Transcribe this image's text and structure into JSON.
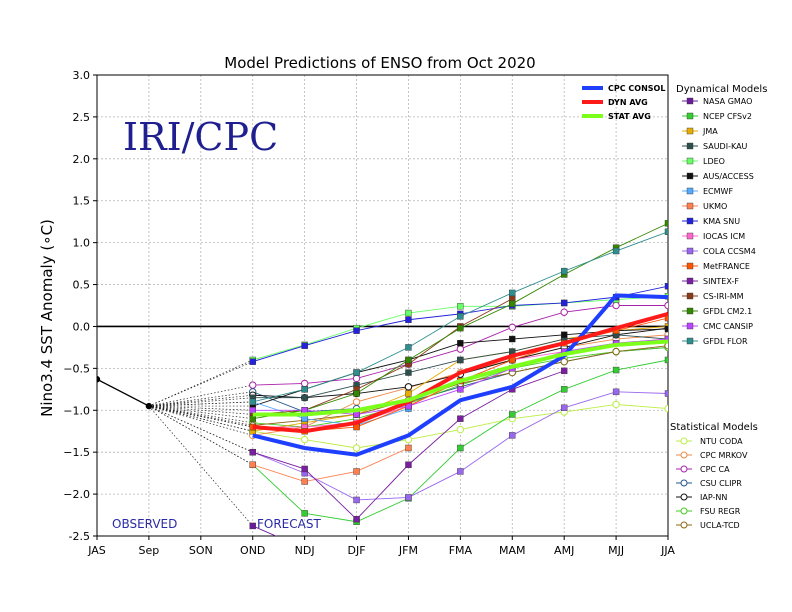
{
  "chart_data": {
    "type": "line",
    "title": "Model Predictions of ENSO from Oct 2020",
    "ylabel": "Nino3.4 SST Anomaly (∘C)",
    "xlabel": "",
    "categories": [
      "JAS",
      "Sep",
      "SON",
      "OND",
      "NDJ",
      "DJF",
      "JFM",
      "FMA",
      "MAM",
      "AMJ",
      "MJJ",
      "JJA"
    ],
    "ylim": [
      -2.5,
      3.0
    ],
    "yticks": [
      "-2.5",
      "−2.0",
      "−1.5",
      "−1.0",
      "−0.5",
      "0.0",
      "0.5",
      "1.0",
      "1.5",
      "2.0",
      "2.5",
      "3.0"
    ],
    "grid": true,
    "watermark": "IRI/CPC",
    "annotations": {
      "observed": "OBSERVED",
      "forecast": "FORECAST"
    },
    "observed": [
      -0.63,
      -0.95
    ],
    "dynamical_title": "Dynamical Models",
    "statistical_title": "Statistical Models",
    "consensus": [
      {
        "name": "CPC CONSOL",
        "color": "#1f3fff",
        "values": [
          null,
          null,
          null,
          -1.3,
          -1.45,
          -1.53,
          -1.3,
          -0.88,
          -0.72,
          -0.35,
          0.37,
          0.35
        ]
      },
      {
        "name": "DYN AVG",
        "color": "#ff1a1a",
        "values": [
          null,
          null,
          null,
          -1.2,
          -1.25,
          -1.15,
          -0.9,
          -0.55,
          -0.35,
          -0.2,
          -0.02,
          0.15
        ]
      },
      {
        "name": "STAT AVG",
        "color": "#7cff1a",
        "values": [
          null,
          null,
          null,
          -1.05,
          -1.05,
          -1.0,
          -0.88,
          -0.65,
          -0.48,
          -0.33,
          -0.22,
          -0.18
        ]
      }
    ],
    "dynamical": [
      {
        "name": "NASA GMAO",
        "color": "#6a1b9a",
        "values": [
          null,
          null,
          null,
          -2.38,
          -2.65,
          null,
          null,
          null,
          null,
          null,
          null,
          null
        ]
      },
      {
        "name": "NCEP CFSv2",
        "color": "#33cc33",
        "values": [
          null,
          null,
          null,
          -1.65,
          -2.23,
          -2.33,
          -2.05,
          -1.45,
          -1.05,
          -0.75,
          -0.52,
          -0.4
        ]
      },
      {
        "name": "JMA",
        "color": "#e6ac00",
        "values": [
          null,
          null,
          null,
          -1.25,
          -1.15,
          -1.05,
          -0.8,
          -0.4,
          -0.3,
          -0.15,
          -0.05,
          0.0
        ]
      },
      {
        "name": "SAUDI-KAU",
        "color": "#2f4f4f",
        "values": [
          null,
          null,
          null,
          -0.85,
          -0.85,
          -0.7,
          -0.55,
          -0.4,
          -0.3,
          -0.15,
          -0.1,
          -0.15
        ]
      },
      {
        "name": "LDEO",
        "color": "#66ff66",
        "values": [
          null,
          null,
          null,
          -0.4,
          -0.22,
          -0.02,
          0.16,
          0.24,
          0.24,
          0.28,
          0.32,
          0.36
        ]
      },
      {
        "name": "AUS/ACCESS",
        "color": "#111111",
        "values": [
          null,
          null,
          null,
          -0.95,
          -0.75,
          -0.55,
          -0.4,
          -0.2,
          -0.15,
          -0.1,
          -0.05,
          -0.03
        ]
      },
      {
        "name": "ECMWF",
        "color": "#55aaff",
        "values": [
          null,
          null,
          null,
          -0.9,
          -1.1,
          -1.18,
          -0.98,
          null,
          null,
          null,
          null,
          null
        ]
      },
      {
        "name": "UKMO",
        "color": "#ff7f50",
        "values": [
          null,
          null,
          null,
          -1.65,
          -1.85,
          -1.73,
          -1.45,
          null,
          null,
          null,
          null,
          null
        ]
      },
      {
        "name": "KMA SNU",
        "color": "#2222dd",
        "values": [
          null,
          null,
          null,
          -0.42,
          -0.23,
          -0.05,
          0.08,
          0.15,
          0.25,
          0.28,
          0.35,
          0.48
        ]
      },
      {
        "name": "IOCAS ICM",
        "color": "#ff66cc",
        "values": [
          null,
          null,
          null,
          -1.2,
          -1.2,
          -1.15,
          -0.95,
          -0.65,
          -0.4,
          -0.3,
          -0.2,
          -0.15
        ]
      },
      {
        "name": "COLA CCSM4",
        "color": "#9966ee",
        "values": [
          null,
          null,
          null,
          -1.5,
          -1.75,
          -2.07,
          -2.04,
          -1.73,
          -1.3,
          -0.97,
          -0.78,
          -0.8
        ]
      },
      {
        "name": "MetFRANCE",
        "color": "#ff5500",
        "values": [
          null,
          null,
          null,
          -1.2,
          -1.25,
          -1.2,
          -0.95,
          -0.65,
          -0.4,
          -0.2,
          -0.05,
          0.1
        ]
      },
      {
        "name": "SINTEX-F",
        "color": "#7a1fa2",
        "values": [
          null,
          null,
          null,
          -1.5,
          -1.7,
          -2.3,
          -1.65,
          -1.1,
          -0.75,
          -0.53,
          null,
          null
        ]
      },
      {
        "name": "CS-IRI-MM",
        "color": "#8b3a1a",
        "values": [
          null,
          null,
          null,
          -1.05,
          -1.0,
          -0.75,
          -0.45,
          0.0,
          0.33,
          null,
          null,
          null
        ]
      },
      {
        "name": "GFDL CM2.1",
        "color": "#338800",
        "values": [
          null,
          null,
          null,
          -1.1,
          -1.0,
          -0.8,
          -0.4,
          -0.02,
          0.27,
          0.62,
          0.94,
          1.23
        ]
      },
      {
        "name": "CMC CANSIP",
        "color": "#bb44ff",
        "values": [
          null,
          null,
          null,
          -1.0,
          -1.0,
          -1.05,
          -0.95,
          -0.75,
          -0.5,
          -0.3,
          -0.2,
          -0.15
        ]
      },
      {
        "name": "GFDL FLOR",
        "color": "#2f8f8f",
        "values": [
          null,
          null,
          null,
          -0.9,
          -0.75,
          -0.55,
          -0.25,
          0.12,
          0.4,
          0.66,
          0.9,
          1.13
        ]
      }
    ],
    "statistical": [
      {
        "name": "NTU CODA",
        "color": "#bbee44",
        "values": [
          null,
          null,
          null,
          -1.25,
          -1.35,
          -1.45,
          -1.35,
          -1.23,
          -1.1,
          -1.02,
          -0.93,
          -0.98
        ]
      },
      {
        "name": "CPC MRKOV",
        "color": "#ee8844",
        "values": [
          null,
          null,
          null,
          -1.3,
          -1.2,
          -0.9,
          -0.73,
          -0.55,
          -0.4,
          -0.25,
          -0.15,
          -0.1
        ]
      },
      {
        "name": "CPC CA",
        "color": "#aa22aa",
        "values": [
          null,
          null,
          null,
          -0.7,
          -0.68,
          -0.62,
          -0.45,
          -0.27,
          -0.01,
          0.17,
          0.25,
          0.25
        ]
      },
      {
        "name": "CSU CLIPR",
        "color": "#225588",
        "values": [
          null,
          null,
          null,
          -0.78,
          -1.02,
          -0.98,
          -0.9,
          -0.72,
          -0.55,
          -0.42,
          -0.3,
          -0.25
        ]
      },
      {
        "name": "IAP-NN",
        "color": "#111111",
        "values": [
          null,
          null,
          null,
          -0.82,
          -0.85,
          -0.8,
          -0.72,
          -0.57,
          -0.4,
          -0.25,
          -0.1,
          -0.02
        ]
      },
      {
        "name": "FSU REGR",
        "color": "#44cc22",
        "values": [
          null,
          null,
          null,
          -1.15,
          -1.2,
          -1.1,
          -0.92,
          -0.7,
          -0.5,
          -0.38,
          -0.3,
          -0.25
        ]
      },
      {
        "name": "UCLA-TCD",
        "color": "#8b6914",
        "values": [
          null,
          null,
          null,
          -1.18,
          -1.12,
          -1.05,
          -0.88,
          -0.68,
          -0.55,
          -0.42,
          -0.3,
          -0.23
        ]
      }
    ]
  }
}
